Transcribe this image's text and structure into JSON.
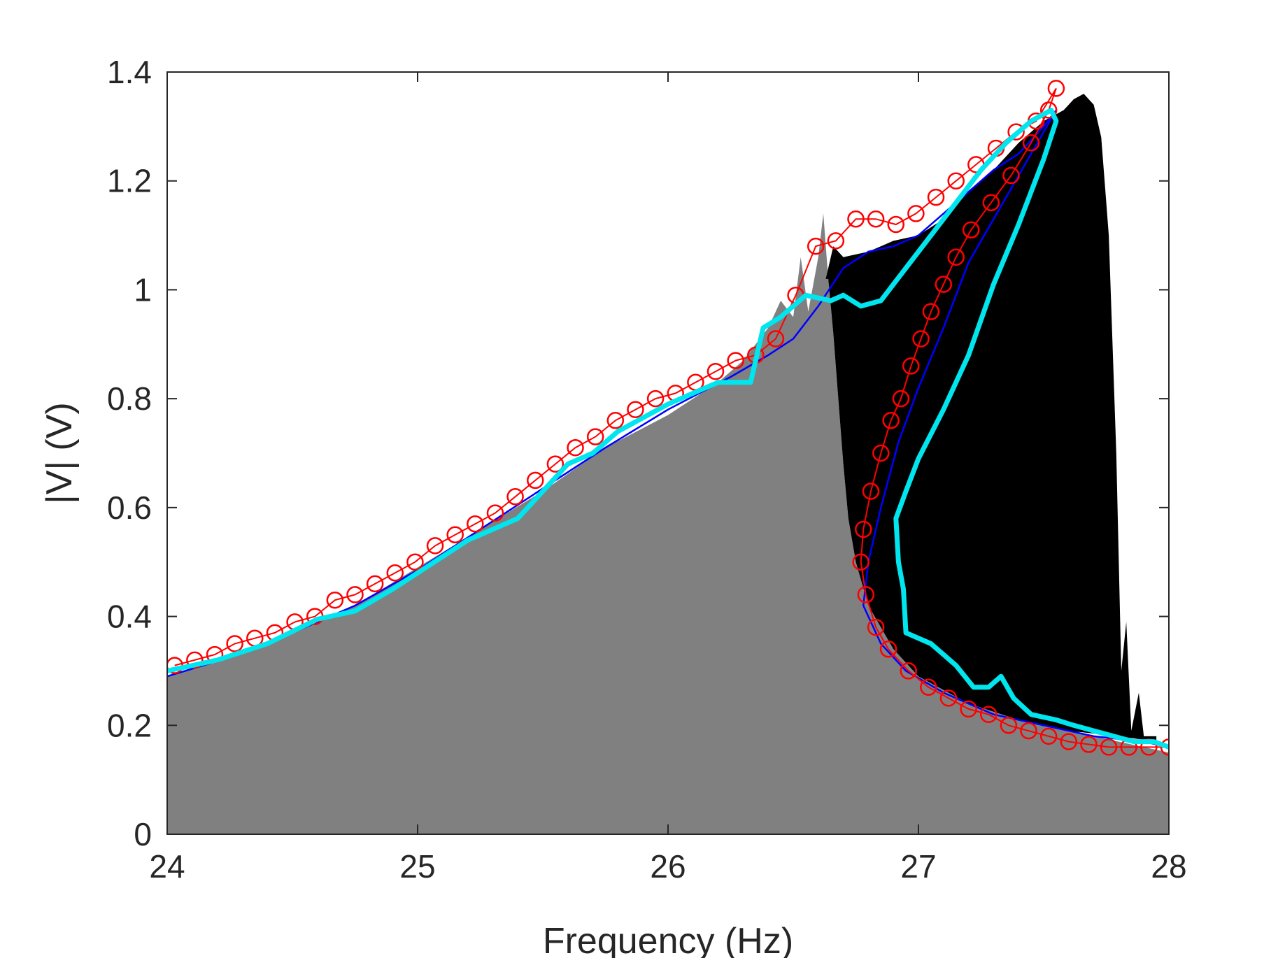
{
  "chart_data": {
    "type": "area",
    "title": "",
    "xlabel": "Frequency (Hz)",
    "ylabel": "|V| (V)",
    "xlim": [
      24,
      28
    ],
    "ylim": [
      0,
      1.4
    ],
    "x_ticks": [
      24,
      25,
      26,
      27,
      28
    ],
    "y_ticks": [
      0,
      0.2,
      0.4,
      0.6,
      0.8,
      1,
      1.2,
      1.4
    ],
    "x_tick_labels": [
      "24",
      "25",
      "26",
      "27",
      "28"
    ],
    "y_tick_labels": [
      "0",
      "0.2",
      "0.4",
      "0.6",
      "0.8",
      "1",
      "1.2",
      "1.4"
    ],
    "grid": false,
    "legend": "none",
    "series": [
      {
        "style": "filled-area",
        "color": "#808080",
        "points": [
          [
            24.0,
            0.29
          ],
          [
            24.25,
            0.33
          ],
          [
            24.5,
            0.37
          ],
          [
            24.75,
            0.42
          ],
          [
            25.0,
            0.49
          ],
          [
            25.25,
            0.56
          ],
          [
            25.5,
            0.63
          ],
          [
            25.75,
            0.71
          ],
          [
            26.0,
            0.77
          ],
          [
            26.2,
            0.83
          ],
          [
            26.3,
            0.87
          ],
          [
            26.35,
            0.9
          ],
          [
            26.4,
            0.93
          ],
          [
            26.45,
            0.98
          ],
          [
            26.5,
            0.95
          ],
          [
            26.53,
            1.06
          ],
          [
            26.56,
            0.96
          ],
          [
            26.6,
            1.06
          ],
          [
            26.62,
            1.14
          ],
          [
            26.64,
            1.02
          ],
          [
            26.66,
            0.92
          ],
          [
            26.68,
            0.8
          ],
          [
            26.7,
            0.68
          ],
          [
            26.72,
            0.58
          ],
          [
            26.75,
            0.5
          ],
          [
            26.8,
            0.42
          ],
          [
            26.9,
            0.34
          ],
          [
            27.0,
            0.29
          ],
          [
            27.2,
            0.24
          ],
          [
            27.4,
            0.21
          ],
          [
            27.6,
            0.19
          ],
          [
            27.8,
            0.17
          ],
          [
            28.0,
            0.15
          ]
        ]
      },
      {
        "style": "filled-area",
        "color": "#000000",
        "upper": [
          [
            26.63,
            1.02
          ],
          [
            26.66,
            1.08
          ],
          [
            26.7,
            1.06
          ],
          [
            26.8,
            1.07
          ],
          [
            26.9,
            1.09
          ],
          [
            27.0,
            1.1
          ],
          [
            27.1,
            1.13
          ],
          [
            27.2,
            1.18
          ],
          [
            27.3,
            1.22
          ],
          [
            27.4,
            1.27
          ],
          [
            27.5,
            1.31
          ],
          [
            27.58,
            1.33
          ],
          [
            27.62,
            1.35
          ],
          [
            27.66,
            1.36
          ],
          [
            27.7,
            1.34
          ],
          [
            27.73,
            1.28
          ],
          [
            27.76,
            1.1
          ],
          [
            27.79,
            0.7
          ],
          [
            27.81,
            0.3
          ],
          [
            27.83,
            0.39
          ],
          [
            27.85,
            0.19
          ],
          [
            27.88,
            0.26
          ],
          [
            27.9,
            0.18
          ],
          [
            27.95,
            0.18
          ]
        ],
        "lower": [
          [
            27.95,
            0.17
          ],
          [
            27.8,
            0.18
          ],
          [
            27.6,
            0.19
          ],
          [
            27.4,
            0.21
          ],
          [
            27.2,
            0.24
          ],
          [
            27.0,
            0.29
          ],
          [
            26.9,
            0.34
          ],
          [
            26.8,
            0.42
          ],
          [
            26.75,
            0.5
          ],
          [
            26.72,
            0.58
          ],
          [
            26.7,
            0.68
          ],
          [
            26.68,
            0.8
          ],
          [
            26.66,
            0.92
          ],
          [
            26.64,
            1.02
          ]
        ]
      },
      {
        "style": "line",
        "color": "#0000ff",
        "points": [
          [
            24.0,
            0.29
          ],
          [
            24.25,
            0.325
          ],
          [
            24.5,
            0.37
          ],
          [
            24.75,
            0.42
          ],
          [
            25.0,
            0.485
          ],
          [
            25.25,
            0.56
          ],
          [
            25.5,
            0.635
          ],
          [
            25.75,
            0.71
          ],
          [
            26.0,
            0.78
          ],
          [
            26.25,
            0.84
          ],
          [
            26.4,
            0.88
          ],
          [
            26.5,
            0.91
          ],
          [
            26.6,
            0.97
          ],
          [
            26.7,
            1.04
          ],
          [
            26.8,
            1.07
          ],
          [
            26.9,
            1.08
          ],
          [
            27.0,
            1.1
          ],
          [
            27.1,
            1.14
          ],
          [
            27.2,
            1.18
          ],
          [
            27.3,
            1.22
          ],
          [
            27.4,
            1.25
          ],
          [
            27.5,
            1.3
          ],
          [
            27.55,
            1.33
          ],
          [
            27.45,
            1.25
          ],
          [
            27.35,
            1.17
          ],
          [
            27.2,
            1.05
          ],
          [
            27.1,
            0.93
          ],
          [
            27.0,
            0.82
          ],
          [
            26.92,
            0.72
          ],
          [
            26.85,
            0.6
          ],
          [
            26.8,
            0.5
          ],
          [
            26.78,
            0.42
          ],
          [
            26.85,
            0.35
          ],
          [
            26.95,
            0.3
          ],
          [
            27.1,
            0.26
          ],
          [
            27.3,
            0.22
          ],
          [
            27.5,
            0.2
          ],
          [
            27.7,
            0.18
          ],
          [
            27.9,
            0.17
          ],
          [
            28.0,
            0.16
          ]
        ]
      },
      {
        "style": "line-markers",
        "marker": "circle",
        "color": "#ff0000",
        "points": [
          [
            24.03,
            0.31
          ],
          [
            24.11,
            0.32
          ],
          [
            24.19,
            0.33
          ],
          [
            24.27,
            0.35
          ],
          [
            24.35,
            0.36
          ],
          [
            24.43,
            0.37
          ],
          [
            24.51,
            0.39
          ],
          [
            24.59,
            0.4
          ],
          [
            24.67,
            0.43
          ],
          [
            24.75,
            0.44
          ],
          [
            24.83,
            0.46
          ],
          [
            24.91,
            0.48
          ],
          [
            24.99,
            0.5
          ],
          [
            25.07,
            0.53
          ],
          [
            25.15,
            0.55
          ],
          [
            25.23,
            0.57
          ],
          [
            25.31,
            0.59
          ],
          [
            25.39,
            0.62
          ],
          [
            25.47,
            0.65
          ],
          [
            25.55,
            0.68
          ],
          [
            25.63,
            0.71
          ],
          [
            25.71,
            0.73
          ],
          [
            25.79,
            0.76
          ],
          [
            25.87,
            0.78
          ],
          [
            25.95,
            0.8
          ],
          [
            26.03,
            0.81
          ],
          [
            26.11,
            0.83
          ],
          [
            26.19,
            0.85
          ],
          [
            26.27,
            0.87
          ],
          [
            26.35,
            0.88
          ],
          [
            26.43,
            0.91
          ],
          [
            26.51,
            0.99
          ],
          [
            26.59,
            1.08
          ],
          [
            26.67,
            1.09
          ],
          [
            26.75,
            1.13
          ],
          [
            26.83,
            1.13
          ],
          [
            26.91,
            1.12
          ],
          [
            26.99,
            1.14
          ],
          [
            27.07,
            1.17
          ],
          [
            27.15,
            1.2
          ],
          [
            27.23,
            1.23
          ],
          [
            27.31,
            1.26
          ],
          [
            27.39,
            1.29
          ],
          [
            27.47,
            1.31
          ],
          [
            27.55,
            1.37
          ],
          [
            27.52,
            1.33
          ],
          [
            27.45,
            1.27
          ],
          [
            27.37,
            1.21
          ],
          [
            27.29,
            1.16
          ],
          [
            27.21,
            1.11
          ],
          [
            27.15,
            1.06
          ],
          [
            27.1,
            1.01
          ],
          [
            27.05,
            0.96
          ],
          [
            27.01,
            0.91
          ],
          [
            26.97,
            0.86
          ],
          [
            26.93,
            0.8
          ],
          [
            26.89,
            0.76
          ],
          [
            26.85,
            0.7
          ],
          [
            26.81,
            0.63
          ],
          [
            26.78,
            0.56
          ],
          [
            26.77,
            0.5
          ],
          [
            26.79,
            0.44
          ],
          [
            26.83,
            0.38
          ],
          [
            26.88,
            0.34
          ],
          [
            26.96,
            0.3
          ],
          [
            27.04,
            0.27
          ],
          [
            27.12,
            0.25
          ],
          [
            27.2,
            0.23
          ],
          [
            27.28,
            0.22
          ],
          [
            27.36,
            0.2
          ],
          [
            27.44,
            0.19
          ],
          [
            27.52,
            0.18
          ],
          [
            27.6,
            0.17
          ],
          [
            27.68,
            0.165
          ],
          [
            27.76,
            0.16
          ],
          [
            27.84,
            0.16
          ],
          [
            27.92,
            0.16
          ],
          [
            28.0,
            0.16
          ]
        ]
      },
      {
        "style": "thick-line",
        "color": "#00e5ee",
        "points": [
          [
            24.0,
            0.3
          ],
          [
            24.2,
            0.32
          ],
          [
            24.4,
            0.35
          ],
          [
            24.6,
            0.395
          ],
          [
            24.75,
            0.41
          ],
          [
            24.9,
            0.45
          ],
          [
            25.0,
            0.48
          ],
          [
            25.2,
            0.54
          ],
          [
            25.4,
            0.58
          ],
          [
            25.5,
            0.63
          ],
          [
            25.6,
            0.68
          ],
          [
            25.7,
            0.7
          ],
          [
            25.8,
            0.74
          ],
          [
            26.0,
            0.79
          ],
          [
            26.2,
            0.83
          ],
          [
            26.33,
            0.83
          ],
          [
            26.38,
            0.93
          ],
          [
            26.45,
            0.95
          ],
          [
            26.55,
            0.99
          ],
          [
            26.65,
            0.98
          ],
          [
            26.7,
            0.99
          ],
          [
            26.77,
            0.97
          ],
          [
            26.85,
            0.98
          ],
          [
            26.95,
            1.04
          ],
          [
            27.05,
            1.1
          ],
          [
            27.15,
            1.16
          ],
          [
            27.25,
            1.22
          ],
          [
            27.35,
            1.27
          ],
          [
            27.45,
            1.31
          ],
          [
            27.53,
            1.33
          ],
          [
            27.55,
            1.31
          ],
          [
            27.5,
            1.24
          ],
          [
            27.4,
            1.12
          ],
          [
            27.3,
            1.01
          ],
          [
            27.2,
            0.88
          ],
          [
            27.1,
            0.78
          ],
          [
            27.0,
            0.69
          ],
          [
            26.95,
            0.63
          ],
          [
            26.91,
            0.58
          ],
          [
            26.92,
            0.5
          ],
          [
            26.94,
            0.45
          ],
          [
            26.95,
            0.37
          ],
          [
            27.05,
            0.35
          ],
          [
            27.15,
            0.31
          ],
          [
            27.22,
            0.27
          ],
          [
            27.28,
            0.27
          ],
          [
            27.33,
            0.29
          ],
          [
            27.38,
            0.25
          ],
          [
            27.45,
            0.22
          ],
          [
            27.55,
            0.21
          ],
          [
            27.62,
            0.2
          ],
          [
            27.7,
            0.19
          ],
          [
            27.78,
            0.18
          ],
          [
            27.86,
            0.17
          ],
          [
            27.94,
            0.17
          ],
          [
            28.0,
            0.16
          ]
        ]
      }
    ]
  }
}
